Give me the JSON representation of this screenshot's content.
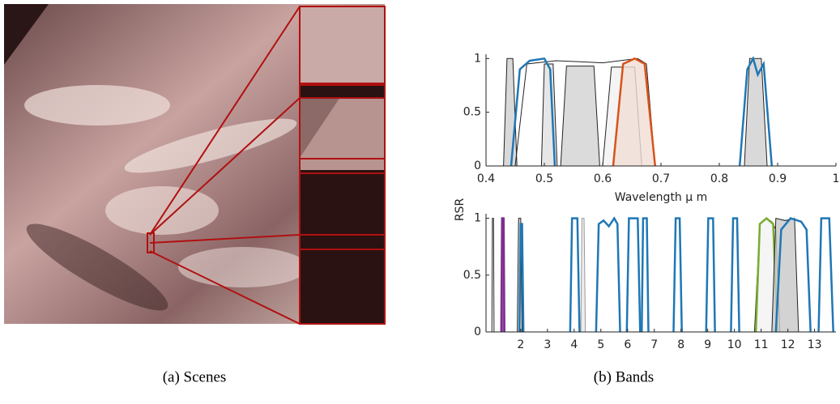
{
  "figure": {
    "panels": [
      {
        "caption": "(a) Scenes"
      },
      {
        "caption": "(b) Bands"
      }
    ]
  },
  "chart_data": [
    {
      "type": "line",
      "x_label": "Wavelength μ m",
      "y_label": "RSR",
      "xlim": [
        0.4,
        1
      ],
      "ylim": [
        0,
        1.04
      ],
      "xticks": [
        0.4,
        0.5,
        0.6,
        0.7,
        0.8,
        0.9,
        1
      ],
      "yticks": [
        0,
        0.5,
        1
      ],
      "series": [
        {
          "color": "#222222",
          "fill": "#cfcfcf",
          "x": [
            0.43,
            0.436,
            0.446,
            0.453
          ],
          "values": [
            0,
            1,
            1,
            0
          ]
        },
        {
          "color": "#222222",
          "fill": "#e0e0e0",
          "x": [
            0.495,
            0.5,
            0.515,
            0.522
          ],
          "values": [
            0,
            0.95,
            0.95,
            0
          ]
        },
        {
          "color": "#222222",
          "fill": "#d2d2d2",
          "x": [
            0.528,
            0.538,
            0.585,
            0.595
          ],
          "values": [
            0,
            0.93,
            0.93,
            0
          ]
        },
        {
          "color": "#222222",
          "fill": "#f1f1f1",
          "x": [
            0.6,
            0.615,
            0.655,
            0.667
          ],
          "values": [
            0,
            0.92,
            0.92,
            0
          ]
        },
        {
          "color": "#222222",
          "x": [
            0.45,
            0.47,
            0.52,
            0.56,
            0.6,
            0.66,
            0.675,
            0.69
          ],
          "values": [
            0,
            0.95,
            0.98,
            0.97,
            0.96,
            1,
            0.95,
            0
          ]
        },
        {
          "color": "#1f77b4",
          "x": [
            0.443,
            0.458,
            0.475,
            0.5,
            0.51,
            0.518
          ],
          "values": [
            0,
            0.9,
            0.98,
            1,
            0.9,
            0
          ]
        },
        {
          "color": "#d95319",
          "fill": "#f1ddd6",
          "x": [
            0.618,
            0.635,
            0.655,
            0.672,
            0.69
          ],
          "values": [
            0,
            0.95,
            1,
            0.95,
            0
          ]
        },
        {
          "color": "#222222",
          "fill": "#cfcfcf",
          "x": [
            0.843,
            0.852,
            0.872,
            0.882
          ],
          "values": [
            0,
            1,
            1,
            0
          ]
        },
        {
          "color": "#1f77b4",
          "x": [
            0.835,
            0.848,
            0.858,
            0.866,
            0.876,
            0.89
          ],
          "values": [
            0,
            0.9,
            1,
            0.85,
            0.95,
            0
          ]
        }
      ]
    },
    {
      "type": "line",
      "xlim": [
        0.7,
        13.8
      ],
      "ylim": [
        0,
        1.04
      ],
      "xticks": [
        2,
        3,
        4,
        5,
        6,
        7,
        8,
        9,
        10,
        11,
        12,
        13
      ],
      "yticks": [
        0,
        0.5,
        1
      ],
      "series": [
        {
          "color": "#222222",
          "x": [
            0.92,
            0.94,
            0.98,
            1.0
          ],
          "values": [
            0,
            1,
            1,
            0
          ]
        },
        {
          "color": "#7e2f8e",
          "fill": "#7e2f8e",
          "x": [
            1.27,
            1.3,
            1.36,
            1.39
          ],
          "values": [
            0,
            1,
            1,
            0
          ]
        },
        {
          "color": "#222222",
          "fill": "#d0d0d0",
          "x": [
            1.87,
            1.92,
            2.0,
            2.05
          ],
          "values": [
            0,
            1,
            1,
            0
          ]
        },
        {
          "color": "#1f77b4",
          "x": [
            1.95,
            2.0,
            2.05,
            2.1
          ],
          "values": [
            0,
            0.95,
            0.95,
            0
          ]
        },
        {
          "color": "#1f77b4",
          "x": [
            3.85,
            3.92,
            4.12,
            4.2
          ],
          "values": [
            0,
            1,
            1,
            0
          ]
        },
        {
          "color": "#999999",
          "fill": "#e8e8e8",
          "x": [
            4.25,
            4.29,
            4.37,
            4.42
          ],
          "values": [
            0,
            1,
            1,
            0
          ]
        },
        {
          "color": "#1f77b4",
          "x": [
            4.82,
            4.92,
            5.1,
            5.3,
            5.5,
            5.62,
            5.72
          ],
          "values": [
            0,
            0.95,
            0.98,
            0.93,
            1,
            0.95,
            0
          ]
        },
        {
          "color": "#1f77b4",
          "x": [
            5.97,
            6.05,
            6.38,
            6.47
          ],
          "values": [
            0,
            1,
            1,
            0
          ]
        },
        {
          "color": "#1f77b4",
          "x": [
            6.53,
            6.58,
            6.72,
            6.78
          ],
          "values": [
            0,
            1,
            1,
            0
          ]
        },
        {
          "color": "#1f77b4",
          "x": [
            7.72,
            7.8,
            7.95,
            8.03
          ],
          "values": [
            0,
            1,
            1,
            0
          ]
        },
        {
          "color": "#1f77b4",
          "x": [
            8.94,
            9.02,
            9.2,
            9.27
          ],
          "values": [
            0,
            1,
            1,
            0
          ]
        },
        {
          "color": "#1f77b4",
          "x": [
            9.87,
            9.95,
            10.1,
            10.18
          ],
          "values": [
            0,
            1,
            1,
            0
          ]
        },
        {
          "color": "#222222",
          "fill": "#f2f2f2",
          "x": [
            10.75,
            10.95,
            11.2,
            11.4,
            11.55,
            11.7
          ],
          "values": [
            0,
            0.95,
            1,
            0.97,
            0.9,
            0
          ]
        },
        {
          "color": "#77ac30",
          "x": [
            10.8,
            10.95,
            11.2,
            11.45,
            11.6
          ],
          "values": [
            0,
            0.95,
            1,
            0.95,
            0
          ]
        },
        {
          "color": "#222222",
          "fill": "#c8c8c8",
          "x": [
            11.4,
            11.55,
            11.9,
            12.25,
            12.4
          ],
          "values": [
            0,
            1,
            0.98,
            1,
            0
          ]
        },
        {
          "color": "#1f77b4",
          "x": [
            11.55,
            11.75,
            12.1,
            12.5,
            12.7,
            12.85
          ],
          "values": [
            0,
            0.9,
            1,
            0.97,
            0.9,
            0
          ]
        },
        {
          "color": "#1f77b4",
          "x": [
            13.15,
            13.25,
            13.55,
            13.7
          ],
          "values": [
            0,
            1,
            1,
            0
          ]
        }
      ]
    }
  ]
}
